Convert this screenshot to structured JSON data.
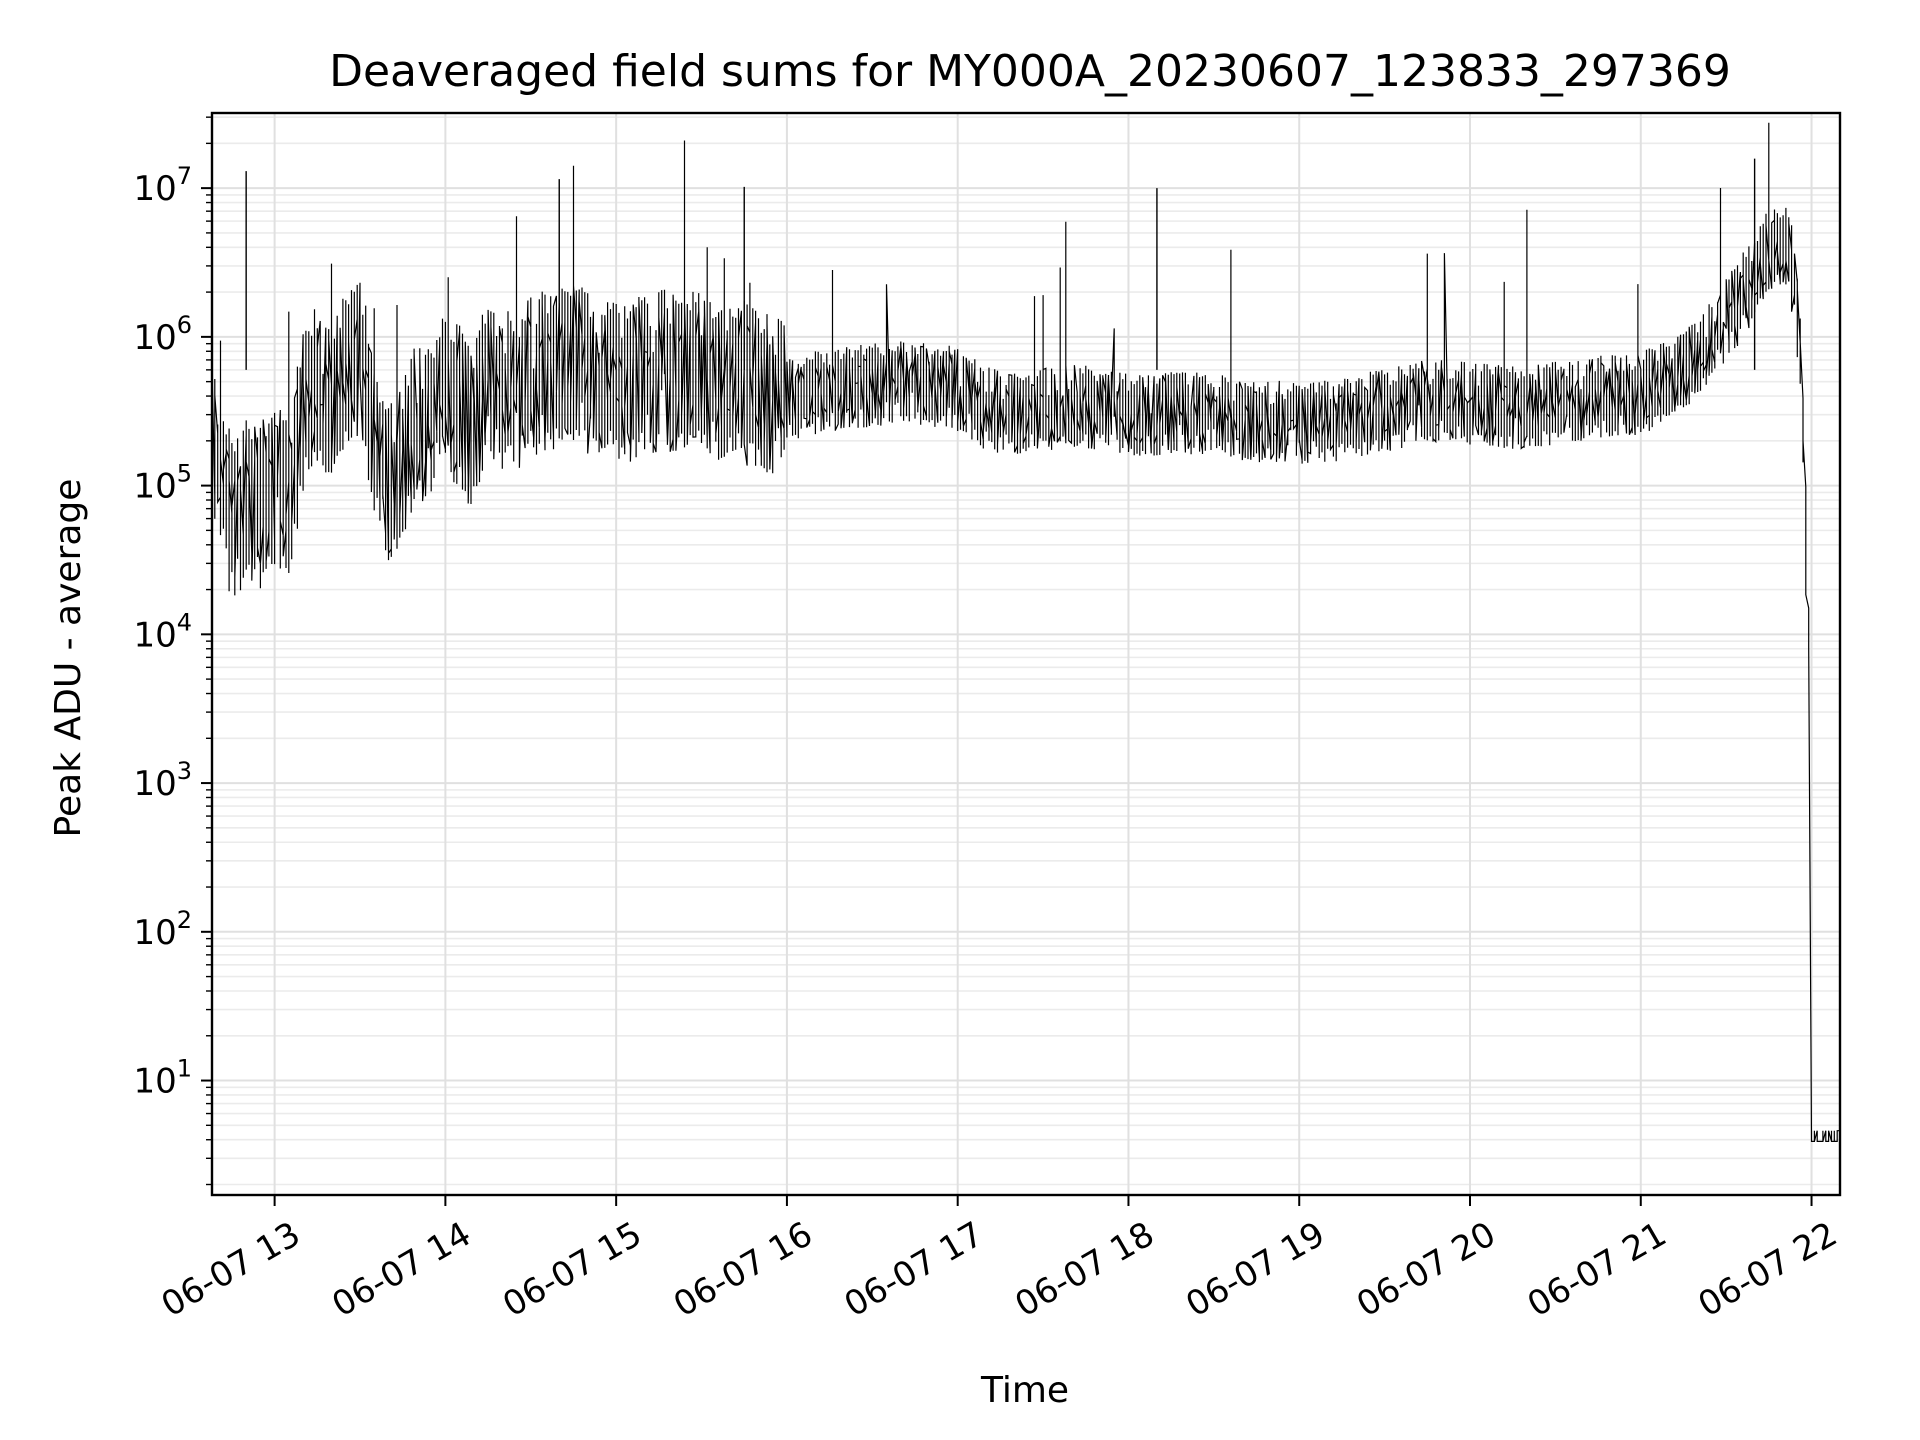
{
  "chart_data": {
    "type": "line",
    "title": "Deaveraged field sums for MY000A_20230607_123833_297369",
    "xlabel": "Time",
    "ylabel": "Peak ADU - average",
    "yscale": "log",
    "grid": true,
    "xlim": [
      "2023-06-07 12:38",
      "2023-06-07 22:10"
    ],
    "ylim": [
      1.7,
      32000000
    ],
    "x_tick_labels": [
      "06-07 13",
      "06-07 14",
      "06-07 15",
      "06-07 16",
      "06-07 17",
      "06-07 18",
      "06-07 19",
      "06-07 20",
      "06-07 21",
      "06-07 22"
    ],
    "x_tick_values": [
      "2023-06-07 13:00",
      "2023-06-07 14:00",
      "2023-06-07 15:00",
      "2023-06-07 16:00",
      "2023-06-07 17:00",
      "2023-06-07 18:00",
      "2023-06-07 19:00",
      "2023-06-07 20:00",
      "2023-06-07 21:00",
      "2023-06-07 22:00"
    ],
    "y_tick_values": [
      10,
      100,
      1000,
      10000,
      100000,
      1000000,
      10000000
    ],
    "y_tick_labels": [
      {
        "base": "10",
        "exp": "1"
      },
      {
        "base": "10",
        "exp": "2"
      },
      {
        "base": "10",
        "exp": "3"
      },
      {
        "base": "10",
        "exp": "4"
      },
      {
        "base": "10",
        "exp": "5"
      },
      {
        "base": "10",
        "exp": "6"
      },
      {
        "base": "10",
        "exp": "7"
      }
    ],
    "series": [
      {
        "color": "#000000",
        "x": [
          "2023-06-07 12:38",
          "2023-06-07 12:40",
          "2023-06-07 12:42",
          "2023-06-07 12:44",
          "2023-06-07 12:46",
          "2023-06-07 12:48",
          "2023-06-07 12:50",
          "2023-06-07 12:52",
          "2023-06-07 12:55",
          "2023-06-07 12:58",
          "2023-06-07 13:02",
          "2023-06-07 13:06",
          "2023-06-07 13:10",
          "2023-06-07 13:15",
          "2023-06-07 13:20",
          "2023-06-07 13:25",
          "2023-06-07 13:30",
          "2023-06-07 13:33",
          "2023-06-07 13:36",
          "2023-06-07 13:38",
          "2023-06-07 13:40",
          "2023-06-07 13:45",
          "2023-06-07 13:50",
          "2023-06-07 13:55",
          "2023-06-07 14:00",
          "2023-06-07 14:05",
          "2023-06-07 14:10",
          "2023-06-07 14:15",
          "2023-06-07 14:20",
          "2023-06-07 14:25",
          "2023-06-07 14:30",
          "2023-06-07 14:35",
          "2023-06-07 14:40",
          "2023-06-07 14:45",
          "2023-06-07 14:50",
          "2023-06-07 14:55",
          "2023-06-07 15:00",
          "2023-06-07 15:05",
          "2023-06-07 15:10",
          "2023-06-07 15:15",
          "2023-06-07 15:20",
          "2023-06-07 15:25",
          "2023-06-07 15:30",
          "2023-06-07 15:35",
          "2023-06-07 15:40",
          "2023-06-07 15:45",
          "2023-06-07 15:50",
          "2023-06-07 15:55",
          "2023-06-07 16:00",
          "2023-06-07 16:10",
          "2023-06-07 16:20",
          "2023-06-07 16:30",
          "2023-06-07 16:40",
          "2023-06-07 16:50",
          "2023-06-07 17:00",
          "2023-06-07 17:10",
          "2023-06-07 17:20",
          "2023-06-07 17:30",
          "2023-06-07 17:40",
          "2023-06-07 17:50",
          "2023-06-07 18:00",
          "2023-06-07 18:10",
          "2023-06-07 18:20",
          "2023-06-07 18:30",
          "2023-06-07 18:40",
          "2023-06-07 18:50",
          "2023-06-07 19:00",
          "2023-06-07 19:10",
          "2023-06-07 19:20",
          "2023-06-07 19:30",
          "2023-06-07 19:40",
          "2023-06-07 19:50",
          "2023-06-07 20:00",
          "2023-06-07 20:10",
          "2023-06-07 20:20",
          "2023-06-07 20:30",
          "2023-06-07 20:40",
          "2023-06-07 20:50",
          "2023-06-07 21:00",
          "2023-06-07 21:10",
          "2023-06-07 21:20",
          "2023-06-07 21:30",
          "2023-06-07 21:35",
          "2023-06-07 21:40",
          "2023-06-07 21:44",
          "2023-06-07 21:48",
          "2023-06-07 21:52",
          "2023-06-07 21:55",
          "2023-06-07 21:57",
          "2023-06-07 21:58",
          "2023-06-07 21:59",
          "2023-06-07 22:00",
          "2023-06-07 22:01",
          "2023-06-07 22:05",
          "2023-06-07 22:10"
        ],
        "y": [
          500000,
          120000,
          90000,
          70000,
          65000,
          60000,
          80000,
          75000,
          70000,
          90000,
          100000,
          85000,
          300000,
          500000,
          400000,
          600000,
          700000,
          500000,
          180000,
          120000,
          100000,
          150000,
          250000,
          300000,
          400000,
          350000,
          250000,
          500000,
          450000,
          400000,
          550000,
          600000,
          600000,
          650000,
          600000,
          500000,
          520000,
          500000,
          550000,
          600000,
          580000,
          600000,
          600000,
          500000,
          480000,
          500000,
          420000,
          400000,
          380000,
          420000,
          450000,
          470000,
          500000,
          480000,
          450000,
          330000,
          300000,
          320000,
          350000,
          330000,
          300000,
          300000,
          310000,
          300000,
          280000,
          270000,
          260000,
          270000,
          290000,
          320000,
          350000,
          380000,
          360000,
          340000,
          330000,
          360000,
          380000,
          400000,
          420000,
          500000,
          750000,
          1200000,
          1700000,
          2500000,
          3500000,
          4500000,
          4000000,
          2000000,
          600000,
          100000,
          15000,
          8000,
          4,
          4,
          4
        ]
      }
    ],
    "annotations": [
      {
        "x": "2023-06-07 12:50",
        "y": 13000000
      },
      {
        "x": "2023-06-07 14:40",
        "y": 11500000
      },
      {
        "x": "2023-06-07 15:45",
        "y": 10200000
      },
      {
        "x": "2023-06-07 18:10",
        "y": 10000000
      },
      {
        "x": "2023-06-07 21:40",
        "y": 15800000
      }
    ]
  }
}
